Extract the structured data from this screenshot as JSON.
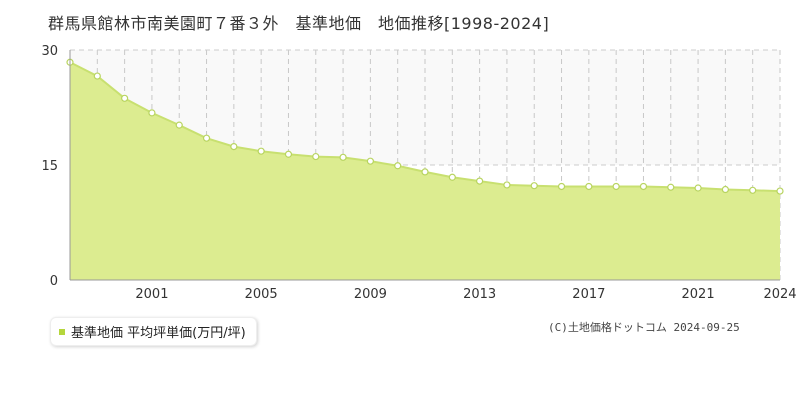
{
  "title": "群馬県館林市南美園町７番３外　基準地価　地価推移[1998-2024]",
  "legend": {
    "label": "基準地価 平均坪単価(万円/坪)"
  },
  "copyright": "(C)土地価格ドットコム 2024-09-25",
  "colors": {
    "fill": "#dcec90",
    "line": "#c8e070",
    "marker_stroke": "#b8d460",
    "marker_fill": "#ffffff",
    "legend_marker": "#b5d63c",
    "grid_vertical": "#c8c8c8",
    "grid_dashed": "#cccccc",
    "upper_band": "#f9f9f9",
    "axis": "#999999"
  },
  "chart_data": {
    "type": "area",
    "x": [
      1998,
      1999,
      2000,
      2001,
      2002,
      2003,
      2004,
      2005,
      2006,
      2007,
      2008,
      2009,
      2010,
      2011,
      2012,
      2013,
      2014,
      2015,
      2016,
      2017,
      2018,
      2019,
      2020,
      2021,
      2022,
      2023,
      2024
    ],
    "series": [
      {
        "name": "基準地価 平均坪単価(万円/坪)",
        "values": [
          28.4,
          26.6,
          23.7,
          21.8,
          20.2,
          18.5,
          17.4,
          16.8,
          16.4,
          16.1,
          16.0,
          15.5,
          14.9,
          14.1,
          13.4,
          12.9,
          12.4,
          12.3,
          12.2,
          12.2,
          12.2,
          12.2,
          12.1,
          12.0,
          11.8,
          11.7,
          11.6
        ]
      }
    ],
    "xlim": [
      1998,
      2024
    ],
    "ylim": [
      0,
      30
    ],
    "yticks": [
      0,
      15,
      30
    ],
    "xtick_labels": [
      2001,
      2005,
      2009,
      2013,
      2017,
      2021,
      2024
    ],
    "grid": true
  }
}
